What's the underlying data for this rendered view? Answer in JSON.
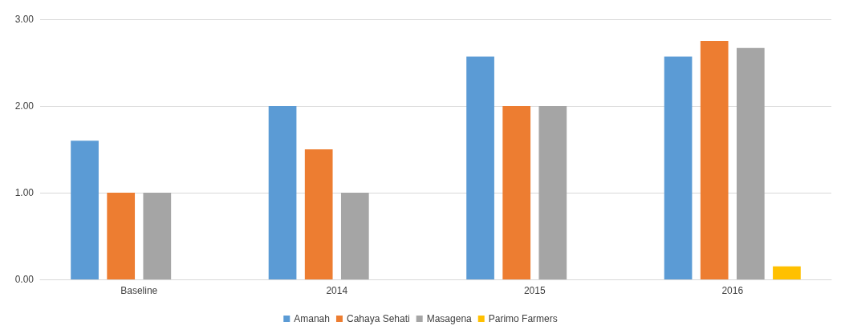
{
  "chart_data": {
    "type": "bar",
    "categories": [
      "Baseline",
      "2014",
      "2015",
      "2016"
    ],
    "series": [
      {
        "name": "Amanah",
        "color": "#5b9bd5",
        "values": [
          1.6,
          2.0,
          2.57,
          2.57
        ]
      },
      {
        "name": "Cahaya Sehati",
        "color": "#ed7d31",
        "values": [
          1.0,
          1.5,
          2.0,
          2.75
        ]
      },
      {
        "name": "Masagena",
        "color": "#a5a5a5",
        "values": [
          1.0,
          1.0,
          2.0,
          2.67
        ]
      },
      {
        "name": "Parimo Farmers",
        "color": "#ffc000",
        "values": [
          null,
          null,
          null,
          0.15
        ]
      }
    ],
    "ylim": [
      0,
      3
    ],
    "yticks": [
      {
        "value": 0,
        "label": "0.00"
      },
      {
        "value": 1,
        "label": "1.00"
      },
      {
        "value": 2,
        "label": "2.00"
      },
      {
        "value": 3,
        "label": "3.00"
      }
    ],
    "grid": "y",
    "legend": "bottom"
  }
}
